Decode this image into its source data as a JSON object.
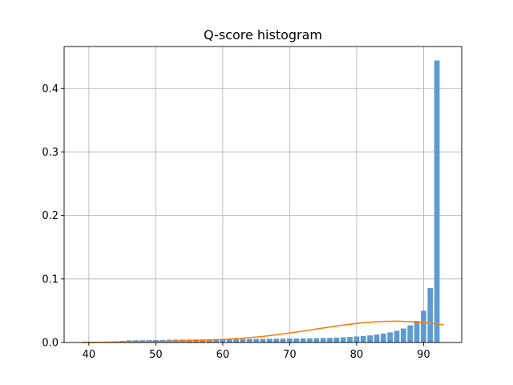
{
  "chart_data": {
    "type": "bar",
    "title": "Q-score histogram",
    "xlabel": "",
    "ylabel": "",
    "xlim": [
      36.3,
      95.7
    ],
    "ylim": [
      0,
      0.466
    ],
    "grid": true,
    "x_ticks": [
      40,
      50,
      60,
      70,
      80,
      90
    ],
    "y_ticks": [
      0.0,
      0.1,
      0.2,
      0.3,
      0.4
    ],
    "y_tick_labels": [
      "0.0",
      "0.1",
      "0.2",
      "0.3",
      "0.4"
    ],
    "x_tick_labels": [
      "40",
      "50",
      "60",
      "70",
      "80",
      "90"
    ],
    "bar_width": 0.8,
    "bar_color": "#5b9bd5",
    "curve_color": "#ff7f0e",
    "series": [
      {
        "type": "bar",
        "x": [
          39,
          40,
          41,
          42,
          43,
          44,
          45,
          46,
          47,
          48,
          49,
          50,
          51,
          52,
          53,
          54,
          55,
          56,
          57,
          58,
          59,
          60,
          61,
          62,
          63,
          64,
          65,
          66,
          67,
          68,
          69,
          70,
          71,
          72,
          73,
          74,
          75,
          76,
          77,
          78,
          79,
          80,
          81,
          82,
          83,
          84,
          85,
          86,
          87,
          88,
          89,
          90,
          91,
          92,
          93
        ],
        "values": [
          0.0005,
          0.0007,
          0.0009,
          0.0011,
          0.0014,
          0.0018,
          0.0025,
          0.0033,
          0.0035,
          0.0036,
          0.0037,
          0.0038,
          0.004,
          0.0043,
          0.0045,
          0.0046,
          0.0047,
          0.0048,
          0.0049,
          0.005,
          0.0051,
          0.0052,
          0.0053,
          0.0054,
          0.0055,
          0.0056,
          0.0057,
          0.0058,
          0.0059,
          0.006,
          0.0061,
          0.0062,
          0.0063,
          0.0064,
          0.0066,
          0.0068,
          0.007,
          0.0073,
          0.0077,
          0.0082,
          0.0088,
          0.0095,
          0.0103,
          0.0112,
          0.0125,
          0.014,
          0.016,
          0.0185,
          0.022,
          0.027,
          0.034,
          0.05,
          0.086,
          0.444,
          0.0
        ]
      },
      {
        "type": "line",
        "x": [
          39,
          42,
          45,
          48,
          51,
          54,
          57,
          60,
          63,
          66,
          69,
          72,
          75,
          78,
          81,
          84,
          86,
          88,
          90,
          92,
          93
        ],
        "values": [
          0.0001,
          0.0003,
          0.0006,
          0.001,
          0.0016,
          0.0024,
          0.0035,
          0.0048,
          0.0068,
          0.0095,
          0.0135,
          0.018,
          0.0228,
          0.0275,
          0.0312,
          0.0332,
          0.0335,
          0.0328,
          0.0312,
          0.0291,
          0.028
        ]
      }
    ]
  }
}
